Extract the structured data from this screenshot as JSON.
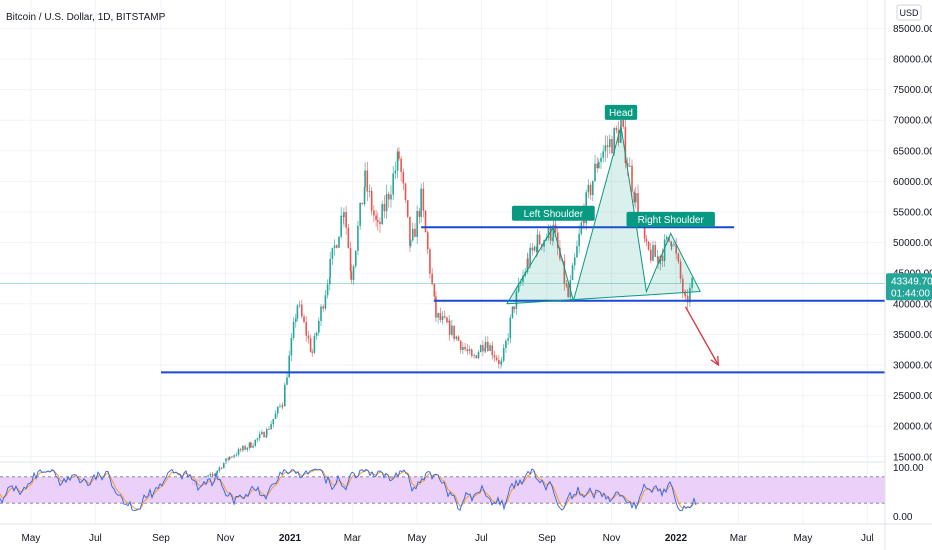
{
  "chart_data": {
    "type": "line",
    "title": "Bitcoin / U.S. Dollar, 1D, BITSTAMP",
    "currency": "USD",
    "price_axis": {
      "ticks": [
        15000,
        20000,
        25000,
        30000,
        35000,
        40000,
        45000,
        50000,
        55000,
        60000,
        65000,
        70000,
        75000,
        80000,
        85000
      ],
      "tick_labels": [
        "15000.00",
        "20000.00",
        "25000.00",
        "30000.00",
        "35000.00",
        "40000.00",
        "45000.00",
        "50000.00",
        "55000.00",
        "60000.00",
        "65000.00",
        "70000.00",
        "75000.00",
        "80000.00",
        "85000.00"
      ]
    },
    "time_axis": {
      "labels": [
        "May",
        "Jul",
        "Sep",
        "Nov",
        "2021",
        "Mar",
        "May",
        "Jul",
        "Sep",
        "Nov",
        "2022",
        "Mar",
        "May",
        "Jul"
      ],
      "bold": [
        "2021",
        "2022"
      ]
    },
    "series": [
      {
        "x": [
          "2020-10-01",
          "2020-10-20",
          "2020-11-05",
          "2020-11-25",
          "2020-12-10",
          "2020-12-25",
          "2021-01-08",
          "2021-01-22",
          "2021-02-08",
          "2021-02-21",
          "2021-02-28",
          "2021-03-13",
          "2021-03-25",
          "2021-04-14",
          "2021-04-25",
          "2021-05-05",
          "2021-05-19",
          "2021-06-01",
          "2021-06-22",
          "2021-07-05",
          "2021-07-20",
          "2021-08-01",
          "2021-08-14",
          "2021-08-23",
          "2021-09-07",
          "2021-09-21",
          "2021-10-06",
          "2021-10-20",
          "2021-11-10",
          "2021-11-24",
          "2021-12-04",
          "2021-12-15",
          "2021-12-28",
          "2022-01-10",
          "2022-01-17"
        ],
        "values": [
          10800,
          12000,
          15000,
          17000,
          19200,
          24000,
          40000,
          32000,
          46000,
          56000,
          45000,
          60000,
          52000,
          64000,
          49000,
          57000,
          38000,
          36000,
          31000,
          34000,
          30000,
          40000,
          47000,
          50000,
          52000,
          41000,
          55000,
          64000,
          68500,
          57000,
          48500,
          47500,
          51000,
          40000,
          43349.7
        ]
      }
    ],
    "horizontal_lines": [
      {
        "value": 52500,
        "from": "2021-05-05",
        "to": "2022-02-25"
      },
      {
        "value": 40500,
        "from": "2021-05-17",
        "to": "2022-07-31"
      },
      {
        "value": 28800,
        "from": "2020-09-01",
        "to": "2022-07-31"
      }
    ],
    "pattern": {
      "points": [
        {
          "x": "2021-07-25",
          "y": 40000
        },
        {
          "x": "2021-09-07",
          "y": 52500
        },
        {
          "x": "2021-09-26",
          "y": 40500
        },
        {
          "x": "2021-11-10",
          "y": 69000
        },
        {
          "x": "2021-12-04",
          "y": 42000
        },
        {
          "x": "2021-12-27",
          "y": 51500
        },
        {
          "x": "2022-01-24",
          "y": 42000
        }
      ],
      "labels": [
        {
          "text": "Left Shoulder",
          "x": "2021-09-07",
          "y": 52500
        },
        {
          "text": "Head",
          "x": "2021-11-10",
          "y": 69000
        },
        {
          "text": "Right Shoulder",
          "x": "2021-12-27",
          "y": 51500
        }
      ]
    },
    "projection_arrow": {
      "from": {
        "x": "2022-01-10",
        "y": 39500
      },
      "to": {
        "x": "2022-02-10",
        "y": 30000
      }
    },
    "last_price": {
      "value": 43349.7,
      "label": "43349.70",
      "countdown": "01:44:00"
    },
    "oscillator": {
      "tick_labels": [
        "100.00",
        "0.00"
      ],
      "band": [
        20,
        80
      ]
    },
    "colors": {
      "accent_blue": "#1848d8",
      "pattern_teal": "#089981",
      "candle_up": "#26a69a",
      "candle_down": "#ef5350",
      "arrow_red": "#e0303a",
      "osc_band": "#e8c8f8",
      "price_tag": "#26a69a"
    },
    "grid": true,
    "legend": "none"
  }
}
